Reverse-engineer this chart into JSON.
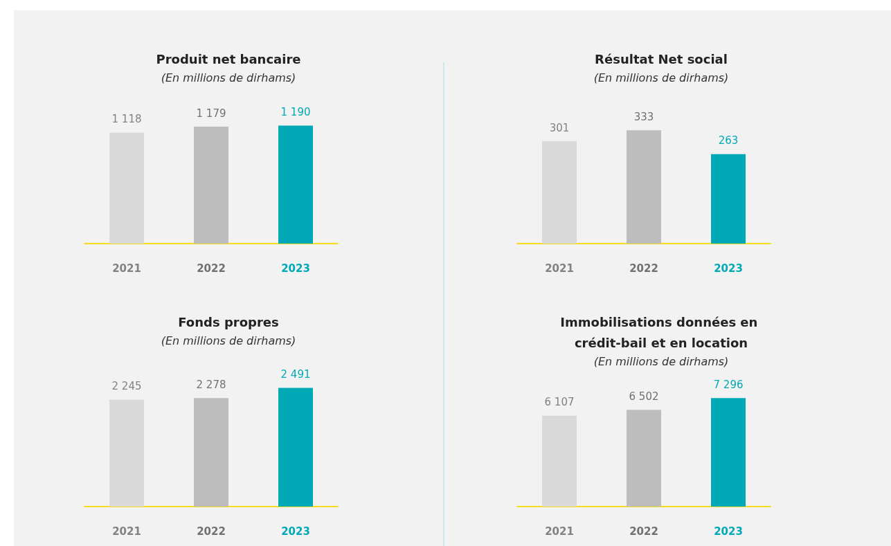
{
  "chart_data": [
    {
      "type": "bar",
      "title": "Produit net bancaire",
      "subtitle": "(En millions de dirhams)",
      "categories": [
        "2021",
        "2022",
        "2023"
      ],
      "values": [
        1118,
        1179,
        1190
      ],
      "colors": [
        "#d9d9d9",
        "#bdbdbd",
        "#00a9b5"
      ],
      "data_labels": true
    },
    {
      "type": "bar",
      "title": "Résultat Net social",
      "subtitle": "(En millions de dirhams)",
      "categories": [
        "2021",
        "2022",
        "2023"
      ],
      "values": [
        301,
        333,
        263
      ],
      "colors": [
        "#d9d9d9",
        "#bdbdbd",
        "#00a9b5"
      ],
      "data_labels": true
    },
    {
      "type": "bar",
      "title": "Fonds propres",
      "subtitle": "(En millions de dirhams)",
      "categories": [
        "2021",
        "2022",
        "2023"
      ],
      "values": [
        2245,
        2278,
        2491
      ],
      "colors": [
        "#d9d9d9",
        "#bdbdbd",
        "#00a9b5"
      ],
      "data_labels": true
    },
    {
      "type": "bar",
      "title": "Immobilisations données en crédit-bail et en location",
      "subtitle": "(En millions de dirhams)",
      "categories": [
        "2021",
        "2022",
        "2023"
      ],
      "values": [
        6107,
        6502,
        7296
      ],
      "colors": [
        "#d9d9d9",
        "#bdbdbd",
        "#00a9b5"
      ],
      "data_labels": true
    }
  ]
}
